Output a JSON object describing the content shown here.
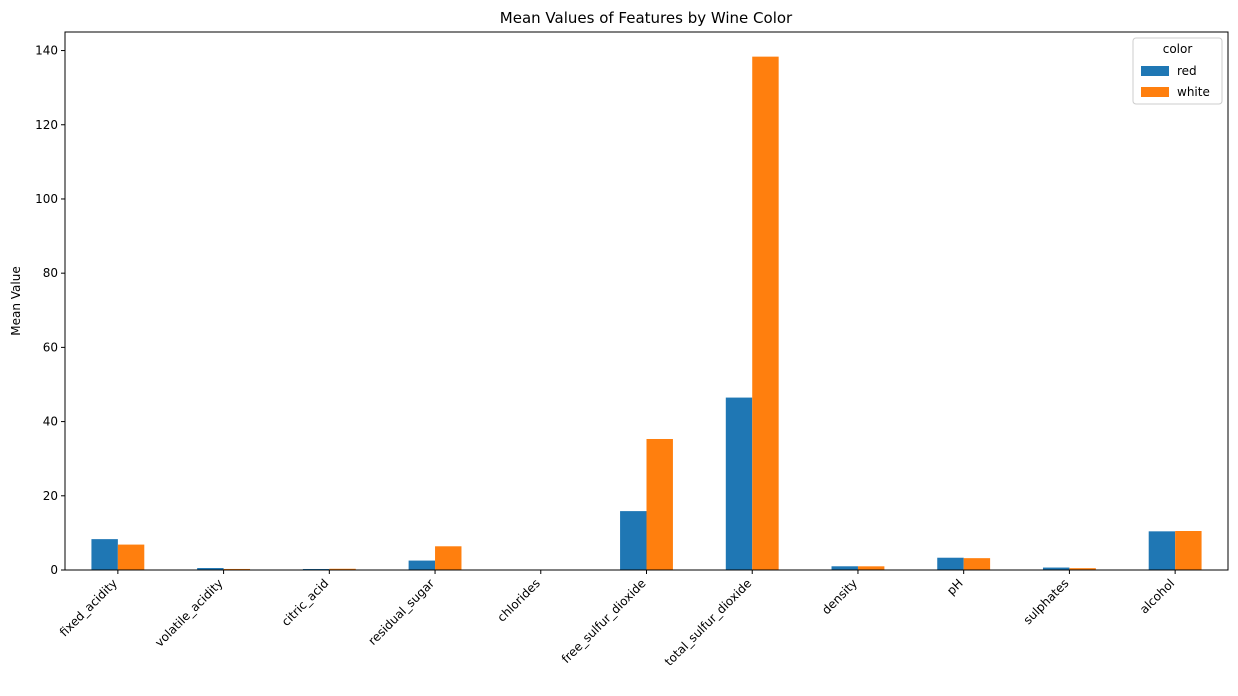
{
  "chart_data": {
    "type": "bar",
    "title": "Mean Values of Features by Wine Color",
    "xlabel": "",
    "ylabel": "Mean Value",
    "ylim": [
      0,
      145
    ],
    "yticks": [
      0,
      20,
      40,
      60,
      80,
      100,
      120,
      140
    ],
    "grid": false,
    "legend": {
      "title": "color",
      "placement": "top-right"
    },
    "categories": [
      "fixed_acidity",
      "volatile_acidity",
      "citric_acid",
      "residual_sugar",
      "chlorides",
      "free_sulfur_dioxide",
      "total_sulfur_dioxide",
      "density",
      "pH",
      "sulphates",
      "alcohol"
    ],
    "series": [
      {
        "name": "red",
        "color": "#1f77b4",
        "values": [
          8.32,
          0.53,
          0.27,
          2.54,
          0.09,
          15.87,
          46.47,
          1.0,
          3.31,
          0.66,
          10.42
        ]
      },
      {
        "name": "white",
        "color": "#ff7f0e",
        "values": [
          6.85,
          0.28,
          0.33,
          6.39,
          0.05,
          35.31,
          138.36,
          0.99,
          3.19,
          0.49,
          10.51
        ]
      }
    ]
  }
}
